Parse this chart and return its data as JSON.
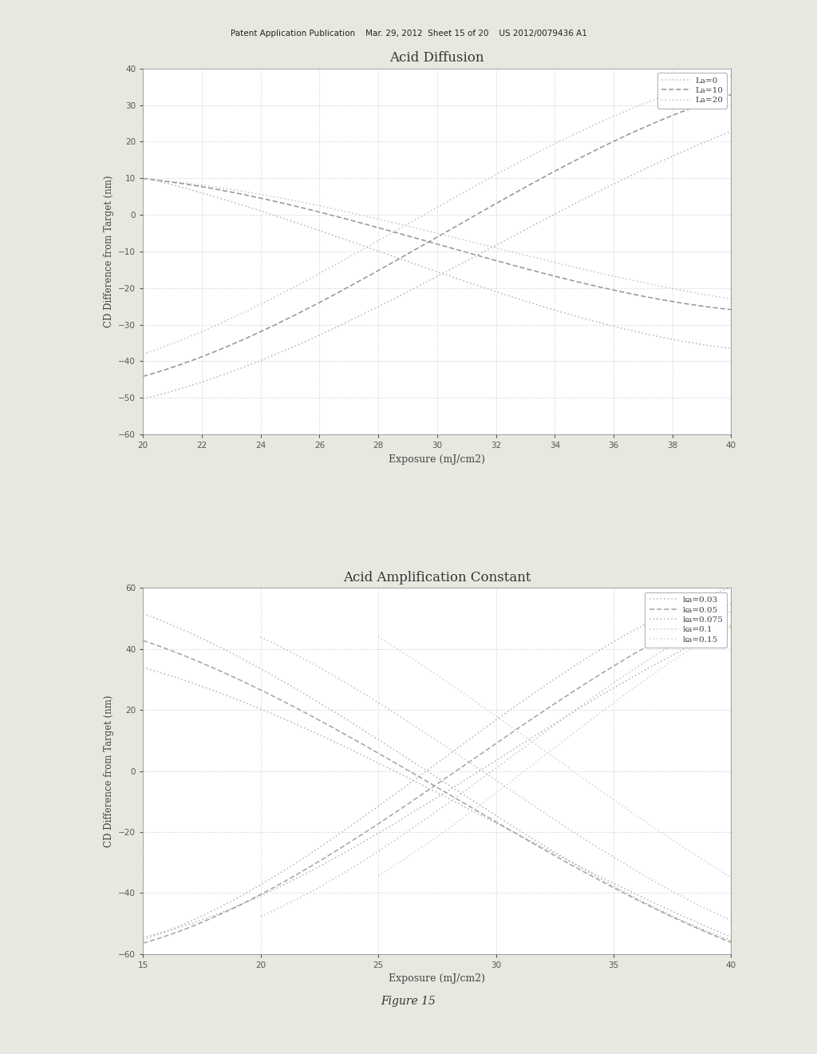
{
  "fig_width": 10.24,
  "fig_height": 13.2,
  "bg_color": "#e8e8e0",
  "header_text": "Patent Application Publication    Mar. 29, 2012  Sheet 15 of 20    US 2012/0079436 A1",
  "footer_text": "Figure 15",
  "plot1": {
    "title": "Acid Diffusion",
    "xlabel": "Exposure (mJ/cm2)",
    "ylabel": "CD Difference from Target (nm)",
    "xlim": [
      20,
      40
    ],
    "ylim": [
      -60,
      40
    ],
    "xticks": [
      20,
      22,
      24,
      26,
      28,
      30,
      32,
      34,
      36,
      38,
      40
    ],
    "yticks": [
      -60,
      -50,
      -40,
      -30,
      -20,
      -10,
      0,
      10,
      20,
      30,
      40
    ],
    "series": [
      {
        "label": "La=0",
        "color": "#aaaaaa",
        "ls_fall": [
          1,
          2
        ],
        "ls_rise": [
          1,
          2
        ],
        "x_fall": [
          20,
          22,
          24,
          26,
          28,
          30,
          32,
          34,
          36,
          38,
          40
        ],
        "y_fall": [
          10.0,
          6.0,
          1.5,
          -4.0,
          -10.0,
          -16.0,
          -21.5,
          -26.0,
          -30.0,
          -33.5,
          -37.0
        ],
        "x_rise": [
          20,
          22,
          24,
          26,
          28,
          30,
          32,
          34,
          36,
          38,
          40
        ],
        "y_rise": [
          -50.0,
          -46.0,
          -40.0,
          -33.0,
          -25.0,
          -16.5,
          -8.0,
          0.0,
          8.0,
          16.0,
          23.0
        ]
      },
      {
        "label": "La=10",
        "color": "#888888",
        "ls_fall": [
          4,
          2
        ],
        "ls_rise": [
          4,
          2
        ],
        "x_fall": [
          20,
          22,
          24,
          26,
          28,
          30,
          32,
          34,
          36,
          38,
          40
        ],
        "y_fall": [
          10.0,
          7.5,
          4.5,
          1.0,
          -3.5,
          -8.0,
          -12.5,
          -17.0,
          -20.5,
          -23.5,
          -26.0
        ],
        "x_rise": [
          20,
          22,
          24,
          26,
          28,
          30,
          32,
          34,
          36,
          38,
          40
        ],
        "y_rise": [
          -44.0,
          -39.0,
          -32.0,
          -24.0,
          -15.0,
          -6.0,
          3.0,
          12.0,
          20.0,
          27.0,
          33.0
        ]
      },
      {
        "label": "La=20",
        "color": "#bbbbbb",
        "ls_fall": [
          1,
          2
        ],
        "ls_rise": [
          1,
          2
        ],
        "x_fall": [
          20,
          22,
          24,
          26,
          28,
          30,
          32,
          34,
          36,
          38,
          40
        ],
        "y_fall": [
          10.0,
          8.0,
          5.5,
          2.5,
          -1.0,
          -5.0,
          -9.0,
          -13.0,
          -17.0,
          -20.0,
          -23.0
        ],
        "x_rise": [
          20,
          22,
          24,
          26,
          28,
          30,
          32,
          34,
          36,
          38,
          40
        ],
        "y_rise": [
          -38.0,
          -32.0,
          -24.5,
          -16.0,
          -7.0,
          2.0,
          11.0,
          19.5,
          27.0,
          33.0,
          38.0
        ]
      }
    ]
  },
  "plot2": {
    "title": "Acid Amplification Constant",
    "xlabel": "Exposure (mJ/cm2)",
    "ylabel": "CD Difference from Target (nm)",
    "xlim": [
      15,
      40
    ],
    "ylim": [
      -60,
      60
    ],
    "xticks": [
      15,
      20,
      25,
      30,
      35,
      40
    ],
    "yticks": [
      -60,
      -40,
      -20,
      0,
      20,
      40,
      60
    ],
    "series": [
      {
        "label": "ka=0.03",
        "color": "#aaaaaa",
        "ls": [
          1,
          2
        ],
        "x1": [
          15.0,
          17.0,
          19.0,
          21.0,
          23.0,
          25.0,
          27.0,
          29.0,
          31.0,
          33.0,
          35.0,
          37.0,
          39.0,
          40.0
        ],
        "y1": [
          34.0,
          29.0,
          23.5,
          17.0,
          10.0,
          2.5,
          -5.0,
          -13.0,
          -21.0,
          -29.0,
          -37.0,
          -44.5,
          -51.0,
          -54.5
        ],
        "x2": [
          15.0,
          17.0,
          19.0,
          21.0,
          23.0,
          25.0,
          27.0,
          29.0,
          31.0,
          33.0,
          35.0,
          37.0,
          39.0,
          40.0
        ],
        "y2": [
          -55.0,
          -50.0,
          -44.0,
          -37.0,
          -29.0,
          -20.5,
          -11.5,
          -2.0,
          8.0,
          18.0,
          28.0,
          36.5,
          43.5,
          47.0
        ]
      },
      {
        "label": "ka=0.05",
        "color": "#999999",
        "ls": [
          4,
          2
        ],
        "x1": [
          15.0,
          17.0,
          19.0,
          21.0,
          23.0,
          25.0,
          27.0,
          29.0,
          31.0,
          33.0,
          35.0,
          37.0,
          39.0,
          40.0
        ],
        "y1": [
          43.0,
          37.0,
          30.0,
          22.5,
          14.5,
          6.0,
          -3.0,
          -12.0,
          -21.0,
          -30.0,
          -38.5,
          -46.5,
          -53.0,
          -56.0
        ],
        "x2": [
          15.0,
          17.0,
          19.0,
          21.0,
          23.0,
          25.0,
          27.0,
          29.0,
          31.0,
          33.0,
          35.0,
          37.0,
          39.0,
          40.0
        ],
        "y2": [
          -57.0,
          -51.0,
          -44.0,
          -36.0,
          -27.0,
          -17.5,
          -7.5,
          3.0,
          14.0,
          25.0,
          35.0,
          44.0,
          51.0,
          54.5
        ]
      },
      {
        "label": "ka=0.075",
        "color": "#aaaaaa",
        "ls": [
          1,
          2
        ],
        "x1": [
          15.0,
          17.0,
          19.0,
          21.0,
          23.0,
          25.0,
          27.0,
          29.0,
          31.0,
          33.0,
          35.0,
          37.0,
          39.0,
          40.0
        ],
        "y1": [
          52.0,
          45.0,
          37.5,
          29.0,
          20.0,
          10.5,
          0.5,
          -9.5,
          -19.5,
          -29.0,
          -38.0,
          -46.0,
          -52.5,
          -55.5
        ],
        "x2": [
          15.0,
          17.0,
          19.0,
          21.0,
          23.0,
          25.0,
          27.0,
          29.0,
          31.0,
          33.0,
          35.0,
          37.0,
          39.0,
          40.0
        ],
        "y2": [
          -56.0,
          -49.0,
          -41.0,
          -32.0,
          -22.5,
          -12.0,
          -1.0,
          10.5,
          22.0,
          33.0,
          43.0,
          51.5,
          57.5,
          59.5
        ]
      },
      {
        "label": "ka=0.1",
        "color": "#bbbbbb",
        "ls": [
          1,
          2
        ],
        "x1": [
          20.0,
          22.0,
          24.0,
          26.0,
          28.0,
          30.0,
          32.0,
          34.0,
          36.0,
          38.0,
          40.0
        ],
        "y1": [
          44.0,
          36.0,
          27.0,
          17.5,
          7.5,
          -3.0,
          -13.5,
          -23.5,
          -33.0,
          -41.5,
          -49.0
        ],
        "x2": [
          20.0,
          22.0,
          24.0,
          26.0,
          28.0,
          30.0,
          32.0,
          34.0,
          36.0,
          38.0,
          40.0
        ],
        "y2": [
          -48.0,
          -40.0,
          -31.0,
          -21.0,
          -10.5,
          0.5,
          12.0,
          23.5,
          34.5,
          44.0,
          52.0
        ]
      },
      {
        "label": "ka=0.15",
        "color": "#cccccc",
        "ls": [
          1,
          2
        ],
        "x1": [
          25.0,
          27.0,
          29.0,
          31.0,
          33.0,
          35.0,
          37.0,
          39.0,
          40.0
        ],
        "y1": [
          44.0,
          34.0,
          23.5,
          12.5,
          1.5,
          -9.5,
          -20.0,
          -30.0,
          -35.0
        ],
        "x2": [
          25.0,
          27.0,
          29.0,
          31.0,
          33.0,
          35.0,
          37.0,
          39.0,
          40.0
        ],
        "y2": [
          -34.5,
          -24.0,
          -13.0,
          -1.5,
          10.5,
          22.5,
          33.5,
          43.5,
          48.0
        ]
      }
    ]
  }
}
